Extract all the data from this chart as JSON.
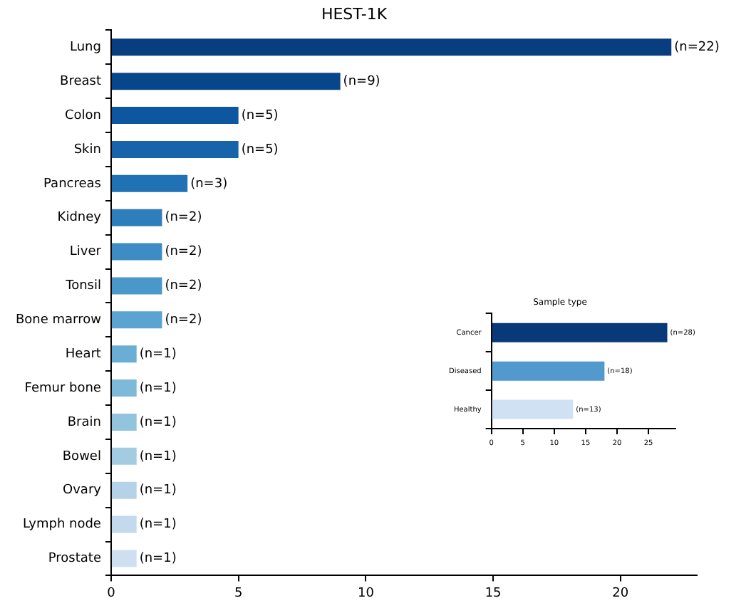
{
  "chart_data": [
    {
      "type": "bar",
      "orientation": "horizontal",
      "title": "HEST-1K",
      "categories": [
        "Lung",
        "Breast",
        "Colon",
        "Skin",
        "Pancreas",
        "Kidney",
        "Liver",
        "Tonsil",
        "Bone marrow",
        "Heart",
        "Femur bone",
        "Brain",
        "Bowel",
        "Ovary",
        "Lymph node",
        "Prostate"
      ],
      "values": [
        22,
        9,
        5,
        5,
        3,
        2,
        2,
        2,
        2,
        1,
        1,
        1,
        1,
        1,
        1,
        1
      ],
      "colors": [
        "#083d7f",
        "#08468b",
        "#0d56a0",
        "#1764ab",
        "#2171b5",
        "#2f7ebc",
        "#3d8dc4",
        "#4a98c9",
        "#5ba3d0",
        "#6aaed6",
        "#7fb9da",
        "#92c4de",
        "#a3cce3",
        "#b4d3e9",
        "#c2d9ee",
        "#cddff1"
      ],
      "value_labels": [
        "(n=22)",
        "(n=9)",
        "(n=5)",
        "(n=5)",
        "(n=3)",
        "(n=2)",
        "(n=2)",
        "(n=2)",
        "(n=2)",
        "(n=1)",
        "(n=1)",
        "(n=1)",
        "(n=1)",
        "(n=1)",
        "(n=1)",
        "(n=1)"
      ],
      "xlim": [
        0,
        23
      ],
      "xticks": [
        0,
        5,
        10,
        15,
        20
      ]
    },
    {
      "type": "bar",
      "orientation": "horizontal",
      "title": "Sample type",
      "categories": [
        "Cancer",
        "Diseased",
        "Healthy"
      ],
      "values": [
        28,
        18,
        13
      ],
      "colors": [
        "#083a7a",
        "#5299cd",
        "#cfe1f2"
      ],
      "value_labels": [
        "(n=28)",
        "(n=18)",
        "(n=13)"
      ],
      "xlim": [
        0,
        29.3
      ],
      "xticks": [
        0,
        5,
        10,
        15,
        20,
        25
      ]
    }
  ]
}
